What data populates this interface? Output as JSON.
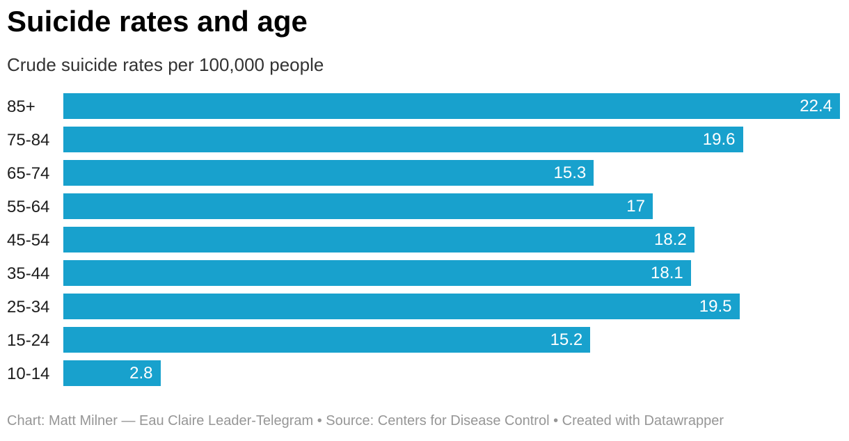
{
  "header": {
    "title": "Suicide rates and age",
    "subtitle": "Crude suicide rates per 100,000 people"
  },
  "footer": {
    "text": "Chart: Matt Milner — Eau Claire Leader-Telegram • Source: Centers for Disease Control • Created with Datawrapper"
  },
  "colors": {
    "bar": "#18a1cd",
    "value_label": "#ffffff",
    "title": "#000000",
    "subtitle": "#333333",
    "category_label": "#1d1d1d",
    "footer_text": "#969696",
    "background": "#ffffff"
  },
  "chart_data": {
    "type": "bar",
    "orientation": "horizontal",
    "title": "Suicide rates and age",
    "subtitle": "Crude suicide rates per 100,000 people",
    "categories": [
      "85+",
      "75-84",
      "65-74",
      "55-64",
      "45-54",
      "35-44",
      "25-34",
      "15-24",
      "10-14"
    ],
    "values": [
      22.4,
      19.6,
      15.3,
      17,
      18.2,
      18.1,
      19.5,
      15.2,
      2.8
    ],
    "xlabel": "",
    "ylabel": "",
    "xlim": [
      0,
      22.4
    ],
    "grid": false,
    "legend": false,
    "value_labels_position": "inside-end",
    "byline": "Matt Milner — Eau Claire Leader-Telegram",
    "source": "Centers for Disease Control",
    "created_with": "Datawrapper"
  }
}
